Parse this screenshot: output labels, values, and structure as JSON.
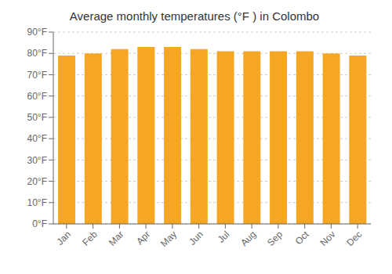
{
  "chart_data": {
    "type": "bar",
    "title": "Average monthly temperatures (°F ) in Colombo",
    "categories": [
      "Jan",
      "Feb",
      "Mar",
      "Apr",
      "May",
      "Jun",
      "Jul",
      "Aug",
      "Sep",
      "Oct",
      "Nov",
      "Dec"
    ],
    "values": [
      79,
      80,
      82,
      83,
      83,
      82,
      81,
      81,
      81,
      81,
      80,
      79
    ],
    "color": "#F5A623",
    "ylim": [
      0,
      90
    ],
    "yticks": [
      {
        "value": 0,
        "label": "0°F"
      },
      {
        "value": 10,
        "label": "10°F"
      },
      {
        "value": 20,
        "label": "20°F"
      },
      {
        "value": 30,
        "label": "30°F"
      },
      {
        "value": 40,
        "label": "40°F"
      },
      {
        "value": 50,
        "label": "50°F"
      },
      {
        "value": 60,
        "label": "60°F"
      },
      {
        "value": 70,
        "label": "70°F"
      },
      {
        "value": 80,
        "label": "80°F"
      },
      {
        "value": 90,
        "label": "90°F"
      }
    ],
    "grid": true
  }
}
